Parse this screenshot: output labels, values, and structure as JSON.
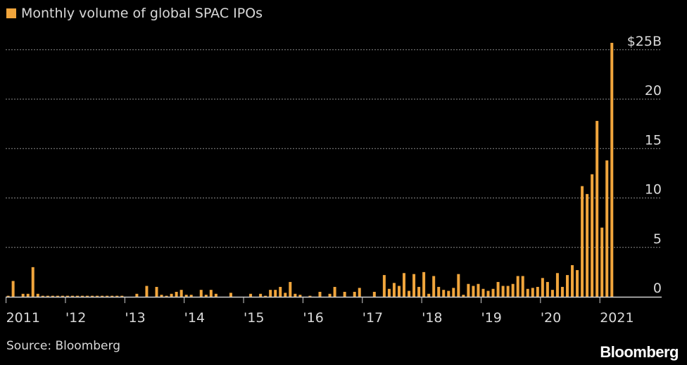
{
  "legend": {
    "label": "Monthly volume of global SPAC IPOs"
  },
  "source": "Source: Bloomberg",
  "brand": "Bloomberg",
  "colors": {
    "bar": "#f0a53c",
    "background": "#000000",
    "text": "#d9d9d9",
    "grid": "#8a8a8a"
  },
  "chart_data": {
    "type": "bar",
    "title": "",
    "xlabel": "",
    "ylabel": "",
    "ylim": [
      0,
      25
    ],
    "yticks": [
      {
        "value": 25,
        "label": "$25B"
      },
      {
        "value": 20,
        "label": "20"
      },
      {
        "value": 15,
        "label": "15"
      },
      {
        "value": 10,
        "label": "10"
      },
      {
        "value": 5,
        "label": "5"
      },
      {
        "value": 0,
        "label": "0"
      }
    ],
    "xticks": [
      "2011",
      "'12",
      "'13",
      "'14",
      "'15",
      "'16",
      "'17",
      "'18",
      "'19",
      "'20",
      "2021"
    ],
    "grid": true,
    "legend_position": "top-left",
    "series": [
      {
        "name": "Monthly volume of global SPAC IPOs",
        "values": [
          0.1,
          1.6,
          0.0,
          0.3,
          0.3,
          3.0,
          0.3,
          0.1,
          0.1,
          0.1,
          0.1,
          0.1,
          0.1,
          0.1,
          0.1,
          0.1,
          0.1,
          0.1,
          0.1,
          0.1,
          0.1,
          0.1,
          0.1,
          0.1,
          0.0,
          0.0,
          0.3,
          0.0,
          1.1,
          0.0,
          1.0,
          0.2,
          0.1,
          0.3,
          0.5,
          0.7,
          0.2,
          0.2,
          0.0,
          0.7,
          0.2,
          0.7,
          0.3,
          0.0,
          0.0,
          0.4,
          0.0,
          0.0,
          0.0,
          0.3,
          0.0,
          0.3,
          0.1,
          0.7,
          0.7,
          1.0,
          0.4,
          1.5,
          0.3,
          0.2,
          0.0,
          0.1,
          0.0,
          0.5,
          0.0,
          0.3,
          1.0,
          0.0,
          0.5,
          0.0,
          0.5,
          0.9,
          0.0,
          0.0,
          0.5,
          0.0,
          2.2,
          0.8,
          1.4,
          1.1,
          2.4,
          0.6,
          2.3,
          1.0,
          2.5,
          0.3,
          2.1,
          1.0,
          0.7,
          0.6,
          0.9,
          2.3,
          0.2,
          1.3,
          1.1,
          1.3,
          0.8,
          0.6,
          0.8,
          1.5,
          1.1,
          1.1,
          1.3,
          2.1,
          2.1,
          0.8,
          0.9,
          1.0,
          1.9,
          1.5,
          0.7,
          2.4,
          1.0,
          2.2,
          3.2,
          2.7,
          11.2,
          10.4,
          12.4,
          17.8,
          7.0,
          13.8,
          25.7
        ]
      }
    ]
  }
}
